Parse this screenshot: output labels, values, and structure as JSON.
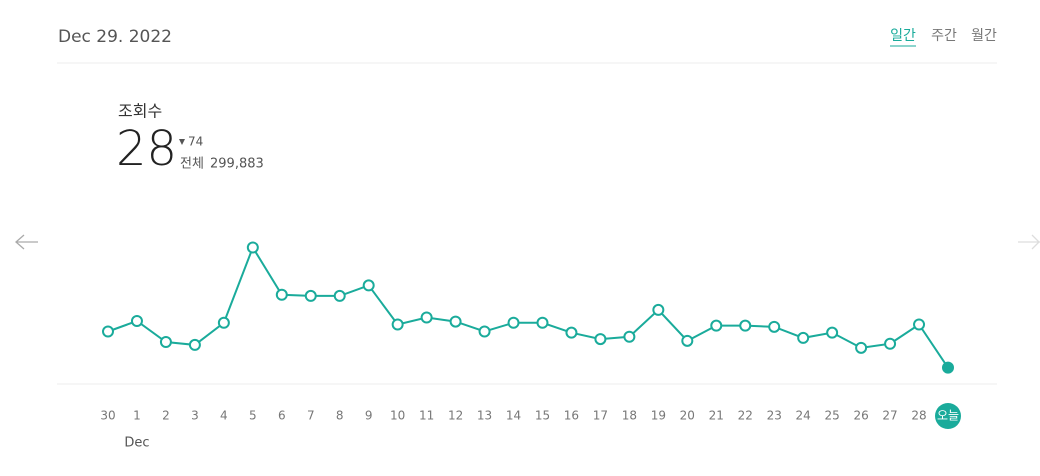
{
  "header": {
    "date": "Dec 29. 2022",
    "tabs": [
      "일간",
      "주간",
      "월간"
    ],
    "active_tab": 0
  },
  "stats": {
    "label": "조회수",
    "views": 28,
    "change": 74,
    "total_label": "전체",
    "total": "299,883"
  },
  "chart_data": {
    "type": "line",
    "categories": [
      "30",
      "1",
      "2",
      "3",
      "4",
      "5",
      "6",
      "7",
      "8",
      "9",
      "10",
      "11",
      "12",
      "13",
      "14",
      "15",
      "16",
      "17",
      "18",
      "19",
      "20",
      "21",
      "22",
      "23",
      "24",
      "25",
      "26",
      "27",
      "28",
      "오늘"
    ],
    "month_label": "Dec",
    "series": [
      {
        "color": "#1aab9b",
        "values": [
          90,
          108,
          72,
          67,
          105,
          234,
          153,
          151,
          151,
          169,
          102,
          114,
          107,
          90,
          105,
          105,
          88,
          77,
          81,
          127,
          74,
          100,
          100,
          98,
          79,
          88,
          62,
          69,
          102,
          28
        ]
      }
    ],
    "ylim": [
      0,
      240
    ]
  }
}
